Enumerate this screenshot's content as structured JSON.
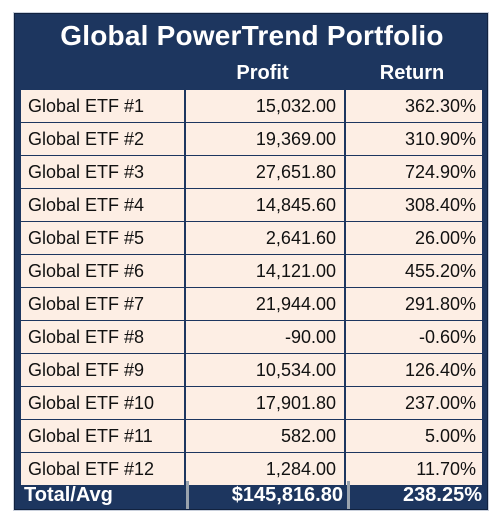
{
  "title": "Global PowerTrend Portfolio",
  "headers": {
    "profit": "Profit",
    "return": "Return"
  },
  "rows": [
    {
      "name": "Global ETF #1",
      "profit": "15,032.00",
      "return": "362.30%"
    },
    {
      "name": "Global ETF #2",
      "profit": "19,369.00",
      "return": "310.90%"
    },
    {
      "name": "Global ETF #3",
      "profit": "27,651.80",
      "return": "724.90%"
    },
    {
      "name": "Global ETF #4",
      "profit": "14,845.60",
      "return": "308.40%"
    },
    {
      "name": "Global ETF #5",
      "profit": "2,641.60",
      "return": "26.00%"
    },
    {
      "name": "Global ETF #6",
      "profit": "14,121.00",
      "return": "455.20%"
    },
    {
      "name": "Global ETF #7",
      "profit": "21,944.00",
      "return": "291.80%"
    },
    {
      "name": "Global ETF #8",
      "profit": "-90.00",
      "return": "-0.60%"
    },
    {
      "name": "Global ETF #9",
      "profit": "10,534.00",
      "return": "126.40%"
    },
    {
      "name": "Global ETF #10",
      "profit": "17,901.80",
      "return": "237.00%"
    },
    {
      "name": "Global ETF #11",
      "profit": "582.00",
      "return": "5.00%"
    },
    {
      "name": "Global ETF #12",
      "profit": "1,284.00",
      "return": "11.70%"
    }
  ],
  "total": {
    "label": "Total/Avg",
    "profit": "$145,816.80",
    "return": "238.25%"
  },
  "colors": {
    "header_bg": "#1d365f",
    "cell_bg": "#fdeee4",
    "header_text": "#ffffff"
  }
}
